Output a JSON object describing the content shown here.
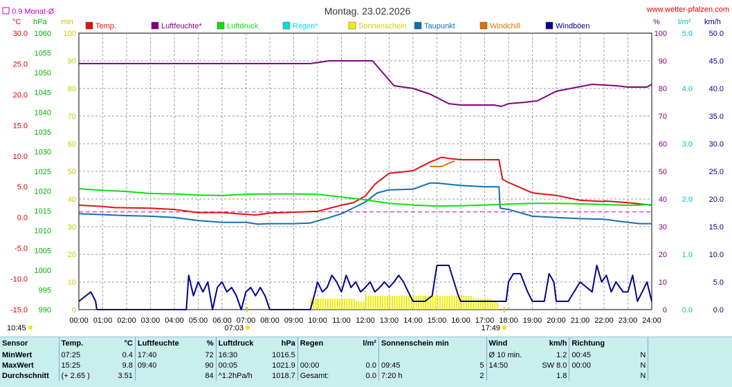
{
  "header": {
    "title": "Montag. 23.02.2026",
    "site": "www.wetter-pfalzen.com",
    "monthly_avg": "0.9 Monat-Ø"
  },
  "units": {
    "c": "°C",
    "hpa": "hPa",
    "min": "min",
    "pct": "%",
    "lm2": "l/m²",
    "kmh": "km/h"
  },
  "legend": [
    {
      "label": "Temp.",
      "color": "#e01010"
    },
    {
      "label": "Luftfeuchte*",
      "color": "#800080"
    },
    {
      "label": "Luftdruck",
      "color": "#10dd10"
    },
    {
      "label": "Regen*",
      "color": "#00e0e0"
    },
    {
      "label": "Sonnenschein",
      "color": "#eeee00"
    },
    {
      "label": "Taupunkt",
      "color": "#1070b0"
    },
    {
      "label": "Windchill",
      "color": "#e07000"
    },
    {
      "label": "Windböen",
      "color": "#000090"
    }
  ],
  "axis_ticks": {
    "temp": [
      "30.0",
      "25.0",
      "20.0",
      "15.0",
      "10.0",
      "5.0",
      "0.0",
      "-5.0",
      "-10.0",
      "-15.0"
    ],
    "hpa": [
      "1060",
      "1055",
      "1050",
      "1045",
      "1040",
      "1035",
      "1030",
      "1025",
      "1020",
      "1015",
      "1010",
      "1005",
      "1000",
      "995",
      "990"
    ],
    "min": [
      "100",
      "90",
      "80",
      "70",
      "60",
      "50",
      "40",
      "30",
      "20",
      "10",
      "0"
    ],
    "pct": [
      "100",
      "90",
      "80",
      "70",
      "60",
      "50",
      "40",
      "30",
      "20",
      "10",
      "0"
    ],
    "rain": [
      "5.0",
      "4.0",
      "3.0",
      "2.0",
      "1.0",
      "0.0"
    ],
    "kmh": [
      "50.0",
      "45.0",
      "40.0",
      "35.0",
      "30.0",
      "25.0",
      "20.0",
      "15.0",
      "10.0",
      "5.0",
      "0.0"
    ],
    "hours": [
      "00:00",
      "01:00",
      "02:00",
      "03:00",
      "04:00",
      "05:00",
      "06:00",
      "07:00",
      "08:00",
      "09:00",
      "10:00",
      "11:00",
      "12:00",
      "13:00",
      "14:00",
      "15:00",
      "16:00",
      "17:00",
      "18:00",
      "19:00",
      "20:00",
      "21:00",
      "22:00",
      "23:00",
      "24:00"
    ]
  },
  "sun_events": {
    "day_length": "10:45",
    "sunrise": "07:03",
    "sunset": "17:49"
  },
  "chart_data": {
    "type": "line",
    "title": "Montag. 23.02.2026",
    "x_range_hours": [
      0,
      24
    ],
    "ylim_temp": [
      -15,
      30
    ],
    "ylim_hpa": [
      990,
      1060
    ],
    "ylim_pct": [
      0,
      100
    ],
    "ylim_min": [
      0,
      100
    ],
    "ylim_rain": [
      0,
      5
    ],
    "ylim_kmh": [
      0,
      50
    ],
    "grid": true,
    "reference_line_temp": 0.9,
    "series": [
      {
        "name": "Temp.",
        "axis": "temp",
        "color": "#e01010",
        "x": [
          0,
          1,
          1.5,
          3,
          4,
          5,
          6,
          7.4,
          8,
          10,
          11,
          11.5,
          12,
          12.4,
          13,
          14,
          14.7,
          15.2,
          15.5,
          16,
          17,
          17.6,
          17.75,
          18,
          19,
          20,
          21,
          22,
          22,
          23,
          23.5,
          24
        ],
        "y": [
          2.0,
          1.8,
          1.6,
          1.5,
          1.3,
          0.8,
          0.8,
          0.4,
          0.7,
          1.0,
          2.0,
          2.4,
          3.5,
          5.4,
          7.2,
          7.6,
          9.0,
          9.8,
          9.6,
          9.4,
          9.4,
          9.4,
          6.2,
          5.7,
          4.0,
          3.6,
          2.8,
          2.6,
          2.7,
          2.4,
          2.2,
          2.0
        ]
      },
      {
        "name": "Windchill",
        "axis": "temp",
        "color": "#e07000",
        "x": [
          14.7,
          15.2,
          15.6,
          15.75
        ],
        "y": [
          8.3,
          8.3,
          9.0,
          9.2
        ]
      },
      {
        "name": "Taupunkt",
        "axis": "temp",
        "color": "#1070b0",
        "x": [
          0,
          2,
          3,
          4,
          5,
          6,
          7,
          7.5,
          8,
          9,
          9.7,
          10.5,
          11,
          12,
          12.5,
          13,
          14,
          14.7,
          15,
          16,
          17,
          17.6,
          17.65,
          18,
          19,
          20,
          21,
          22,
          23,
          23.5,
          24
        ],
        "y": [
          0.6,
          0.3,
          0.2,
          0.0,
          -0.5,
          -0.8,
          -0.8,
          -1.1,
          -1.0,
          -1.0,
          -0.9,
          0.0,
          0.6,
          2.5,
          4.0,
          4.5,
          4.6,
          5.6,
          5.6,
          5.2,
          5.0,
          5.0,
          1.5,
          1.3,
          0.2,
          0.0,
          -0.2,
          -0.3,
          -0.8,
          -1.0,
          -1.0
        ]
      },
      {
        "name": "Luftdruck",
        "axis": "hpa",
        "color": "#10dd10",
        "x": [
          0,
          1,
          2,
          3,
          4,
          5,
          6,
          7,
          8,
          9,
          10,
          11,
          12,
          13,
          14,
          15,
          16,
          17,
          18,
          19,
          20,
          21,
          22,
          23,
          24
        ],
        "y": [
          1020.6,
          1020.2,
          1019.9,
          1019.4,
          1019.3,
          1019.0,
          1018.9,
          1019.2,
          1019.3,
          1019.3,
          1019.2,
          1018.5,
          1017.8,
          1016.9,
          1016.5,
          1016.2,
          1016.3,
          1016.5,
          1016.7,
          1016.9,
          1016.9,
          1016.8,
          1016.6,
          1016.4,
          1016.6
        ]
      },
      {
        "name": "Luftfeuchte*",
        "axis": "pct",
        "color": "#800080",
        "x": [
          0,
          9.7,
          10.5,
          12.3,
          13.2,
          14,
          14.7,
          15.5,
          16,
          17,
          17.4,
          17.7,
          18,
          18.7,
          19.2,
          20,
          21.5,
          22.5,
          23,
          23.8,
          24
        ],
        "y": [
          89,
          89,
          90,
          90,
          81,
          80,
          78,
          74.5,
          74,
          74,
          74,
          73.5,
          74.5,
          75,
          75.5,
          79,
          81.5,
          81,
          80.5,
          80.5,
          81.5
        ]
      },
      {
        "name": "Sonnenschein",
        "axis": "min",
        "color": "#eeee00",
        "x": [
          9.7,
          10.5,
          11,
          11.5,
          12,
          12.5,
          13,
          13.5,
          14,
          14.5,
          15,
          15.5,
          16,
          16.5,
          17,
          17.3,
          17.6
        ],
        "y": [
          4,
          4,
          4,
          3,
          5,
          5,
          5,
          5,
          5,
          5,
          5,
          5,
          5,
          4,
          4,
          3,
          3
        ]
      },
      {
        "name": "Windböen",
        "axis": "kmh",
        "color": "#000090",
        "x": [
          0,
          0.5,
          0.7,
          0.75,
          4.5,
          4.6,
          4.8,
          5.0,
          5.2,
          5.4,
          5.6,
          5.8,
          6.0,
          6.2,
          6.4,
          6.6,
          6.8,
          7.0,
          7.2,
          7.4,
          7.6,
          7.8,
          8.0,
          9.7,
          9.9,
          10.0,
          10.2,
          10.4,
          10.6,
          10.8,
          11.0,
          11.2,
          11.4,
          11.6,
          11.8,
          12.0,
          12.2,
          12.4,
          12.6,
          12.8,
          13.0,
          13.2,
          13.4,
          13.6,
          13.8,
          14.0,
          14.5,
          14.8,
          15.0,
          15.5,
          15.9,
          16.0,
          16.5,
          17.0,
          17.5,
          17.9,
          18.0,
          18.2,
          18.5,
          18.8,
          19.0,
          19.5,
          19.7,
          19.9,
          20.0,
          20.5,
          21.0,
          21.5,
          21.7,
          21.9,
          22.1,
          22.3,
          22.5,
          22.8,
          23.0,
          23.2,
          23.4,
          23.6,
          23.8,
          24.0
        ],
        "y": [
          1.5,
          3.2,
          1.5,
          0,
          0,
          6.2,
          2.5,
          5.0,
          3.2,
          5.0,
          0,
          4.0,
          5.0,
          3.2,
          4.0,
          2.5,
          0,
          3.2,
          4.0,
          2.5,
          4.0,
          2.5,
          0,
          0,
          3.2,
          5.0,
          3.2,
          4.0,
          6.2,
          5.0,
          3.2,
          6.2,
          4.0,
          5.0,
          3.2,
          4.0,
          5.0,
          3.2,
          4.0,
          5.0,
          4.0,
          5.0,
          6.2,
          5.0,
          3.2,
          1.5,
          1.5,
          2.5,
          8.0,
          8.0,
          2.5,
          1.5,
          1.5,
          1.5,
          1.5,
          1.5,
          5.0,
          6.5,
          6.5,
          3.2,
          1.5,
          1.5,
          6.5,
          5.0,
          1.5,
          1.5,
          5.0,
          3.2,
          8.0,
          5.0,
          6.2,
          3.2,
          5.0,
          3.2,
          3.2,
          6.2,
          1.5,
          3.2,
          5.0,
          1.5
        ]
      }
    ]
  },
  "stats": {
    "headers": {
      "sensor": "Sensor",
      "temp": "Temp.",
      "temp_unit": "°C",
      "hum": "Luftfeuchte",
      "hum_unit": "%",
      "press": "Luftdruck",
      "press_unit": "hPa",
      "rain": "Regen",
      "rain_unit": "l/m²",
      "sun": "Sonnenschein min",
      "wind": "Wind",
      "wind_unit": "km/h",
      "dir": "Richtung"
    },
    "rows": [
      {
        "label": "MinWert",
        "t_time": "07:25",
        "t_val": "0.4",
        "h_time": "17:40",
        "h_val": "72",
        "p_time": "16:30",
        "p_val": "1016.5",
        "r_time": "",
        "r_val": "",
        "s_time": "",
        "s_val": "",
        "w_time": "Ø 10 min.",
        "w_val": "1.2",
        "d_time": "00:45",
        "d_val": "N"
      },
      {
        "label": "MaxWert",
        "t_time": "15:25",
        "t_val": "9.8",
        "h_time": "09:40",
        "h_val": "90",
        "p_time": "00:05",
        "p_val": "1021.9",
        "r_time": "00:00",
        "r_val": "0.0",
        "s_time": "09:45",
        "s_val": "5",
        "w_time": "14:50",
        "w_val": "SW 8.0",
        "d_time": "00:00",
        "d_val": "N"
      },
      {
        "label": "Durchschnitt",
        "t_time": "(+ 2.65 )",
        "t_val": "3.51",
        "h_time": "",
        "h_val": "84",
        "p_time": "^1.2hPa/h",
        "p_val": "1018.7",
        "r_time": "Gesamt:",
        "r_val": "0.0",
        "s_time": "7:20 h",
        "s_val": "2",
        "w_time": "",
        "w_val": "1.8",
        "d_time": "",
        "d_val": "N"
      }
    ]
  }
}
